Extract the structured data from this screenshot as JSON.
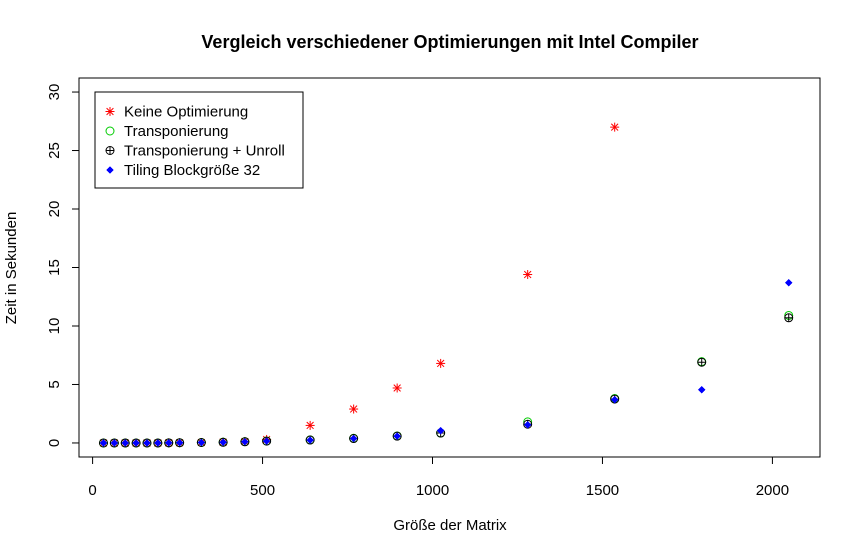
{
  "chart_data": {
    "type": "scatter",
    "title": "Vergleich verschiedener Optimierungen mit Intel Compiler",
    "xlabel": "Größe der Matrix",
    "ylabel": "Zeit in Sekunden",
    "xlim": [
      -40,
      2140
    ],
    "ylim": [
      -1.2,
      31.2
    ],
    "xticks": [
      0,
      500,
      1000,
      1500,
      2000
    ],
    "yticks": [
      0,
      5,
      10,
      15,
      20,
      25,
      30
    ],
    "legend_position": "top-left",
    "series": [
      {
        "name": "Keine Optimierung",
        "color": "#ff0000",
        "marker": "asterisk",
        "x": [
          32,
          64,
          96,
          128,
          160,
          192,
          224,
          256,
          320,
          384,
          448,
          512,
          640,
          768,
          896,
          1024,
          1280,
          1536
        ],
        "y": [
          0.0,
          0.0,
          0.0,
          0.0,
          0.0,
          0.0,
          0.01,
          0.02,
          0.04,
          0.07,
          0.13,
          0.3,
          1.5,
          2.9,
          4.7,
          6.8,
          14.4,
          27.0
        ]
      },
      {
        "name": "Transponierung",
        "color": "#00cc00",
        "marker": "open-circle",
        "x": [
          32,
          64,
          96,
          128,
          160,
          192,
          224,
          256,
          320,
          384,
          448,
          512,
          640,
          768,
          896,
          1024,
          1280,
          1536,
          1792,
          2048
        ],
        "y": [
          0.0,
          0.0,
          0.0,
          0.0,
          0.0,
          0.0,
          0.01,
          0.02,
          0.04,
          0.07,
          0.11,
          0.17,
          0.26,
          0.4,
          0.6,
          0.85,
          1.8,
          3.8,
          6.95,
          10.9
        ]
      },
      {
        "name": "Transponierung + Unroll",
        "color": "#000000",
        "marker": "circle-plus",
        "x": [
          32,
          64,
          96,
          128,
          160,
          192,
          224,
          256,
          320,
          384,
          448,
          512,
          640,
          768,
          896,
          1024,
          1280,
          1536,
          1792,
          2048
        ],
        "y": [
          0.0,
          0.0,
          0.0,
          0.0,
          0.0,
          0.0,
          0.01,
          0.02,
          0.04,
          0.06,
          0.1,
          0.16,
          0.25,
          0.38,
          0.58,
          0.85,
          1.6,
          3.75,
          6.9,
          10.7
        ]
      },
      {
        "name": "Tiling Blockgröße 32",
        "color": "#0000ff",
        "marker": "filled-diamond",
        "x": [
          32,
          64,
          96,
          128,
          160,
          192,
          224,
          256,
          320,
          384,
          448,
          512,
          640,
          768,
          896,
          1024,
          1280,
          1536,
          1792,
          2048
        ],
        "y": [
          0.0,
          0.0,
          0.0,
          0.0,
          0.0,
          0.0,
          0.01,
          0.02,
          0.04,
          0.06,
          0.1,
          0.16,
          0.24,
          0.38,
          0.58,
          1.05,
          1.55,
          3.7,
          4.55,
          13.7
        ]
      }
    ]
  }
}
